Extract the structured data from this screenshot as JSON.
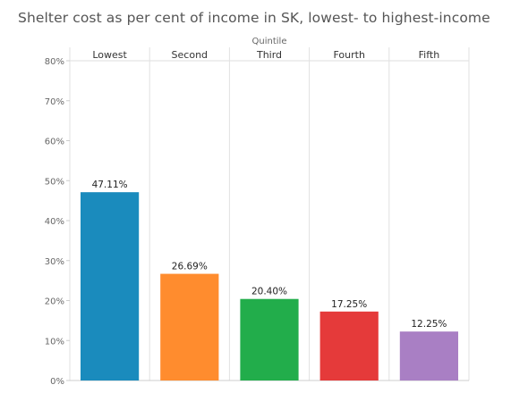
{
  "chart_data": {
    "type": "bar",
    "title": "Shelter cost as per cent of income in SK, lowest- to highest-income",
    "xlabel": "Quintile",
    "ylabel": "",
    "categories": [
      "Lowest",
      "Second",
      "Third",
      "Fourth",
      "Fifth"
    ],
    "values": [
      47.11,
      26.69,
      20.4,
      17.25,
      12.25
    ],
    "value_labels": [
      "47.11%",
      "26.69%",
      "20.40%",
      "17.25%",
      "12.25%"
    ],
    "colors": [
      "#1a8bbd",
      "#ff8c2e",
      "#22ad4b",
      "#e53a3a",
      "#a97fc4"
    ],
    "ylim": [
      0,
      80
    ],
    "yticks": [
      0,
      10,
      20,
      30,
      40,
      50,
      60,
      70,
      80
    ],
    "ytick_labels": [
      "0%",
      "10%",
      "20%",
      "30%",
      "40%",
      "50%",
      "60%",
      "70%",
      "80%"
    ],
    "grid": "vertical separators",
    "legend": "none"
  }
}
